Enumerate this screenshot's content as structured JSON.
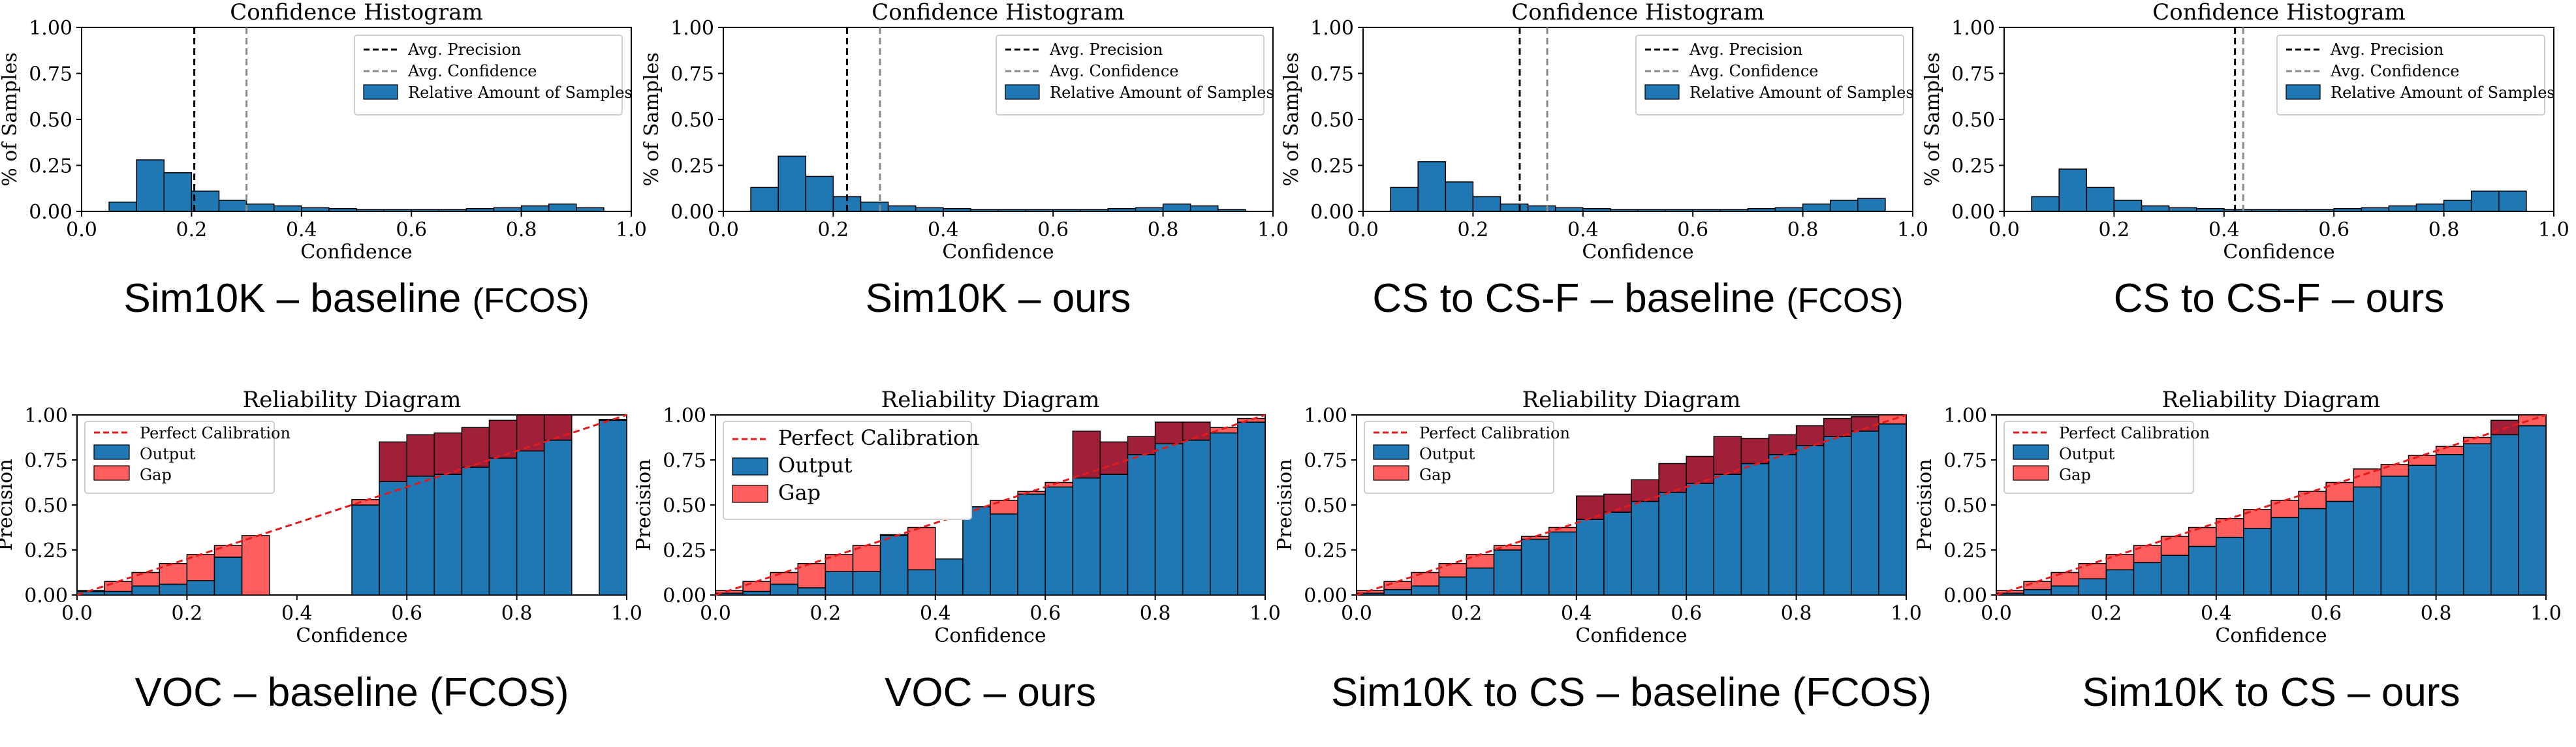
{
  "chart_data": [
    {
      "type": "bar",
      "kind": "confidence-histogram",
      "title": "Confidence Histogram",
      "xlabel": "Confidence",
      "ylabel": "% of Samples",
      "xlim": [
        0,
        1
      ],
      "ylim": [
        0,
        1
      ],
      "xticks": [
        "0.0",
        "0.2",
        "0.4",
        "0.6",
        "0.8",
        "1.0"
      ],
      "yticks": [
        "0.00",
        "0.25",
        "0.50",
        "0.75",
        "1.00"
      ],
      "legend": [
        "Avg. Precision",
        "Avg. Confidence",
        "Relative Amount of Samples"
      ],
      "legend_position": "upper-right",
      "avg_precision": 0.205,
      "avg_confidence": 0.3,
      "bin_width": 0.05,
      "bin_starts": [
        0.05,
        0.1,
        0.15,
        0.2,
        0.25,
        0.3,
        0.35,
        0.4,
        0.45,
        0.5,
        0.55,
        0.6,
        0.65,
        0.7,
        0.75,
        0.8,
        0.85,
        0.9
      ],
      "values": [
        0.05,
        0.28,
        0.21,
        0.11,
        0.06,
        0.04,
        0.03,
        0.02,
        0.015,
        0.01,
        0.01,
        0.01,
        0.01,
        0.015,
        0.02,
        0.03,
        0.04,
        0.02
      ],
      "caption": "Sim10K – baseline (FCOS)",
      "caption_parts": [
        {
          "text": "Sim10K – baseline ",
          "small": false
        },
        {
          "text": "(FCOS)",
          "small": true
        }
      ]
    },
    {
      "type": "bar",
      "kind": "confidence-histogram",
      "title": "Confidence Histogram",
      "xlabel": "Confidence",
      "ylabel": "% of Samples",
      "xlim": [
        0,
        1
      ],
      "ylim": [
        0,
        1
      ],
      "xticks": [
        "0.0",
        "0.2",
        "0.4",
        "0.6",
        "0.8",
        "1.0"
      ],
      "yticks": [
        "0.00",
        "0.25",
        "0.50",
        "0.75",
        "1.00"
      ],
      "legend": [
        "Avg. Precision",
        "Avg. Confidence",
        "Relative Amount of Samples"
      ],
      "legend_position": "upper-right",
      "avg_precision": 0.225,
      "avg_confidence": 0.285,
      "bin_width": 0.05,
      "bin_starts": [
        0.05,
        0.1,
        0.15,
        0.2,
        0.25,
        0.3,
        0.35,
        0.4,
        0.45,
        0.5,
        0.55,
        0.6,
        0.65,
        0.7,
        0.75,
        0.8,
        0.85,
        0.9
      ],
      "values": [
        0.13,
        0.3,
        0.19,
        0.08,
        0.05,
        0.03,
        0.02,
        0.015,
        0.01,
        0.01,
        0.01,
        0.01,
        0.01,
        0.015,
        0.02,
        0.04,
        0.03,
        0.01
      ],
      "caption": "Sim10K – ours",
      "caption_parts": [
        {
          "text": "Sim10K – ours",
          "small": false
        }
      ]
    },
    {
      "type": "bar",
      "kind": "confidence-histogram",
      "title": "Confidence Histogram",
      "xlabel": "Confidence",
      "ylabel": "% of Samples",
      "xlim": [
        0,
        1
      ],
      "ylim": [
        0,
        1
      ],
      "xticks": [
        "0.0",
        "0.2",
        "0.4",
        "0.6",
        "0.8",
        "1.0"
      ],
      "yticks": [
        "0.00",
        "0.25",
        "0.50",
        "0.75",
        "1.00"
      ],
      "legend": [
        "Avg. Precision",
        "Avg. Confidence",
        "Relative Amount of Samples"
      ],
      "legend_position": "upper-right",
      "avg_precision": 0.285,
      "avg_confidence": 0.335,
      "bin_width": 0.05,
      "bin_starts": [
        0.05,
        0.1,
        0.15,
        0.2,
        0.25,
        0.3,
        0.35,
        0.4,
        0.45,
        0.5,
        0.55,
        0.6,
        0.65,
        0.7,
        0.75,
        0.8,
        0.85,
        0.9
      ],
      "values": [
        0.13,
        0.27,
        0.16,
        0.08,
        0.04,
        0.03,
        0.02,
        0.015,
        0.01,
        0.01,
        0.01,
        0.01,
        0.01,
        0.015,
        0.02,
        0.04,
        0.06,
        0.07
      ],
      "caption": "CS to CS-F – baseline (FCOS)",
      "caption_parts": [
        {
          "text": "CS to CS-F – baseline ",
          "small": false
        },
        {
          "text": "(FCOS)",
          "small": true
        }
      ]
    },
    {
      "type": "bar",
      "kind": "confidence-histogram",
      "title": "Confidence Histogram",
      "xlabel": "Confidence",
      "ylabel": "% of Samples",
      "xlim": [
        0,
        1
      ],
      "ylim": [
        0,
        1
      ],
      "xticks": [
        "0.0",
        "0.2",
        "0.4",
        "0.6",
        "0.8",
        "1.0"
      ],
      "yticks": [
        "0.00",
        "0.25",
        "0.50",
        "0.75",
        "1.00"
      ],
      "legend": [
        "Avg. Precision",
        "Avg. Confidence",
        "Relative Amount of Samples"
      ],
      "legend_position": "upper-right",
      "avg_precision": 0.42,
      "avg_confidence": 0.435,
      "bin_width": 0.05,
      "bin_starts": [
        0.05,
        0.1,
        0.15,
        0.2,
        0.25,
        0.3,
        0.35,
        0.4,
        0.45,
        0.5,
        0.55,
        0.6,
        0.65,
        0.7,
        0.75,
        0.8,
        0.85,
        0.9
      ],
      "values": [
        0.08,
        0.23,
        0.13,
        0.06,
        0.03,
        0.02,
        0.015,
        0.01,
        0.01,
        0.01,
        0.01,
        0.015,
        0.02,
        0.03,
        0.04,
        0.06,
        0.11,
        0.11
      ],
      "caption": "CS to CS-F – ours",
      "caption_parts": [
        {
          "text": "CS to CS-F – ours",
          "small": false
        }
      ]
    },
    {
      "type": "bar",
      "kind": "reliability-diagram",
      "title": "Reliability Diagram",
      "xlabel": "Confidence",
      "ylabel": "Precision",
      "xlim": [
        0,
        1
      ],
      "ylim": [
        0,
        1
      ],
      "xticks": [
        "0.0",
        "0.2",
        "0.4",
        "0.6",
        "0.8",
        "1.0"
      ],
      "yticks": [
        "0.00",
        "0.25",
        "0.50",
        "0.75",
        "1.00"
      ],
      "legend": [
        "Perfect Calibration",
        "Output",
        "Gap"
      ],
      "legend_position": "upper-left",
      "bin_width": 0.05,
      "bin_starts": [
        0.0,
        0.05,
        0.1,
        0.15,
        0.2,
        0.25,
        0.3,
        0.35,
        0.4,
        0.45,
        0.5,
        0.55,
        0.6,
        0.65,
        0.7,
        0.75,
        0.8,
        0.85,
        0.9,
        0.95
      ],
      "output": [
        0.02,
        0.02,
        0.05,
        0.06,
        0.08,
        0.21,
        0,
        null,
        null,
        null,
        0.5,
        0.63,
        0.66,
        0.67,
        0.71,
        0.76,
        0.8,
        0.86,
        null,
        0.97
      ],
      "gap_top": [
        0.025,
        0.075,
        0.125,
        0.175,
        0.225,
        0.275,
        0.33,
        null,
        null,
        null,
        0.53,
        0.85,
        0.89,
        0.9,
        0.93,
        0.97,
        1.0,
        1.0,
        null,
        0.975
      ],
      "caption": "VOC – baseline (FCOS)",
      "caption_parts": [
        {
          "text": "VOC – baseline (FCOS)",
          "small": false
        }
      ]
    },
    {
      "type": "bar",
      "kind": "reliability-diagram",
      "title": "Reliability Diagram",
      "xlabel": "Confidence",
      "ylabel": "Precision",
      "xlim": [
        0,
        1
      ],
      "ylim": [
        0,
        1
      ],
      "xticks": [
        "0.0",
        "0.2",
        "0.4",
        "0.6",
        "0.8",
        "1.0"
      ],
      "yticks": [
        "0.00",
        "0.25",
        "0.50",
        "0.75",
        "1.00"
      ],
      "legend": [
        "Perfect Calibration",
        "Output",
        "Gap"
      ],
      "legend_position": "upper-left",
      "bin_width": 0.05,
      "bin_starts": [
        0.0,
        0.05,
        0.1,
        0.15,
        0.2,
        0.25,
        0.3,
        0.35,
        0.4,
        0.45,
        0.5,
        0.55,
        0.6,
        0.65,
        0.7,
        0.75,
        0.8,
        0.85,
        0.9,
        0.95
      ],
      "output": [
        0.01,
        0.02,
        0.06,
        0.04,
        0.13,
        0.13,
        0.33,
        0.14,
        0.2,
        0.49,
        0.45,
        0.56,
        0.6,
        0.65,
        0.67,
        0.78,
        0.84,
        0.86,
        0.9,
        0.96
      ],
      "gap_top": [
        0.025,
        0.075,
        0.125,
        0.175,
        0.225,
        0.275,
        0.335,
        0.375,
        0.2,
        0.49,
        0.525,
        0.575,
        0.625,
        0.91,
        0.85,
        0.88,
        0.96,
        0.96,
        0.93,
        0.98
      ],
      "caption": "VOC – ours",
      "caption_parts": [
        {
          "text": "VOC – ours",
          "small": false
        }
      ]
    },
    {
      "type": "bar",
      "kind": "reliability-diagram",
      "title": "Reliability Diagram",
      "xlabel": "Confidence",
      "ylabel": "Precision",
      "xlim": [
        0,
        1
      ],
      "ylim": [
        0,
        1
      ],
      "xticks": [
        "0.0",
        "0.2",
        "0.4",
        "0.6",
        "0.8",
        "1.0"
      ],
      "yticks": [
        "0.00",
        "0.25",
        "0.50",
        "0.75",
        "1.00"
      ],
      "legend": [
        "Perfect Calibration",
        "Output",
        "Gap"
      ],
      "legend_position": "upper-left",
      "bin_width": 0.05,
      "bin_starts": [
        0.0,
        0.05,
        0.1,
        0.15,
        0.2,
        0.25,
        0.3,
        0.35,
        0.4,
        0.45,
        0.5,
        0.55,
        0.6,
        0.65,
        0.7,
        0.75,
        0.8,
        0.85,
        0.9,
        0.95
      ],
      "output": [
        0.01,
        0.03,
        0.05,
        0.1,
        0.15,
        0.25,
        0.31,
        0.35,
        0.42,
        0.46,
        0.52,
        0.57,
        0.62,
        0.67,
        0.73,
        0.78,
        0.83,
        0.88,
        0.91,
        0.95
      ],
      "gap_top": [
        0.025,
        0.075,
        0.125,
        0.175,
        0.225,
        0.275,
        0.325,
        0.375,
        0.55,
        0.56,
        0.64,
        0.73,
        0.77,
        0.88,
        0.87,
        0.89,
        0.94,
        0.98,
        0.99,
        1.0
      ],
      "caption": "Sim10K to CS – baseline (FCOS)",
      "caption_parts": [
        {
          "text": "Sim10K to CS – baseline (FCOS)",
          "small": false
        }
      ]
    },
    {
      "type": "bar",
      "kind": "reliability-diagram",
      "title": "Reliability Diagram",
      "xlabel": "Confidence",
      "ylabel": "Precision",
      "xlim": [
        0,
        1
      ],
      "ylim": [
        0,
        1
      ],
      "xticks": [
        "0.0",
        "0.2",
        "0.4",
        "0.6",
        "0.8",
        "1.0"
      ],
      "yticks": [
        "0.00",
        "0.25",
        "0.50",
        "0.75",
        "1.00"
      ],
      "legend": [
        "Perfect Calibration",
        "Output",
        "Gap"
      ],
      "legend_position": "upper-left",
      "bin_width": 0.05,
      "bin_starts": [
        0.0,
        0.05,
        0.1,
        0.15,
        0.2,
        0.25,
        0.3,
        0.35,
        0.4,
        0.45,
        0.5,
        0.55,
        0.6,
        0.65,
        0.7,
        0.75,
        0.8,
        0.85,
        0.9,
        0.95
      ],
      "output": [
        0.01,
        0.03,
        0.05,
        0.09,
        0.14,
        0.18,
        0.22,
        0.27,
        0.32,
        0.37,
        0.43,
        0.48,
        0.52,
        0.6,
        0.66,
        0.72,
        0.78,
        0.84,
        0.89,
        0.94
      ],
      "gap_top": [
        0.025,
        0.075,
        0.125,
        0.175,
        0.225,
        0.275,
        0.325,
        0.375,
        0.425,
        0.475,
        0.525,
        0.575,
        0.625,
        0.7,
        0.725,
        0.775,
        0.825,
        0.875,
        0.97,
        1.0
      ],
      "caption": "Sim10K to CS – ours",
      "caption_parts": [
        {
          "text": "Sim10K to CS – ours",
          "small": false
        }
      ]
    }
  ]
}
